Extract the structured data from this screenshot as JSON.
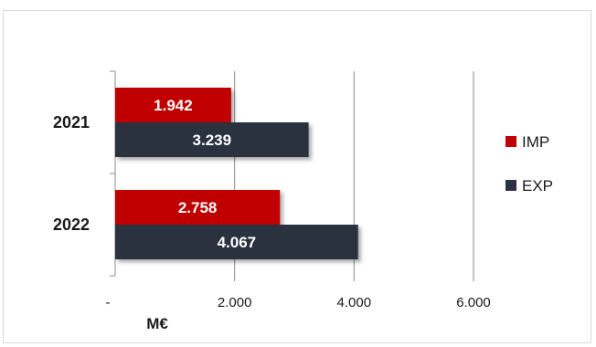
{
  "chart_data": {
    "type": "bar",
    "orientation": "horizontal",
    "categories": [
      "2021",
      "2022"
    ],
    "series": [
      {
        "name": "IMP",
        "values": [
          1942,
          2758
        ],
        "labels": [
          "1.942",
          "2.758"
        ],
        "color": "#c00000"
      },
      {
        "name": "EXP",
        "values": [
          3239,
          4067
        ],
        "labels": [
          "3.239",
          "4.067"
        ],
        "color": "#2b3340"
      }
    ],
    "xlim": [
      0,
      6000
    ],
    "xticks": [
      0,
      2000,
      4000,
      6000
    ],
    "xtick_labels": [
      "-",
      "2.000",
      "4.000",
      "6.000"
    ],
    "xlabel": "M€",
    "grid": true,
    "legend_position": "right"
  }
}
